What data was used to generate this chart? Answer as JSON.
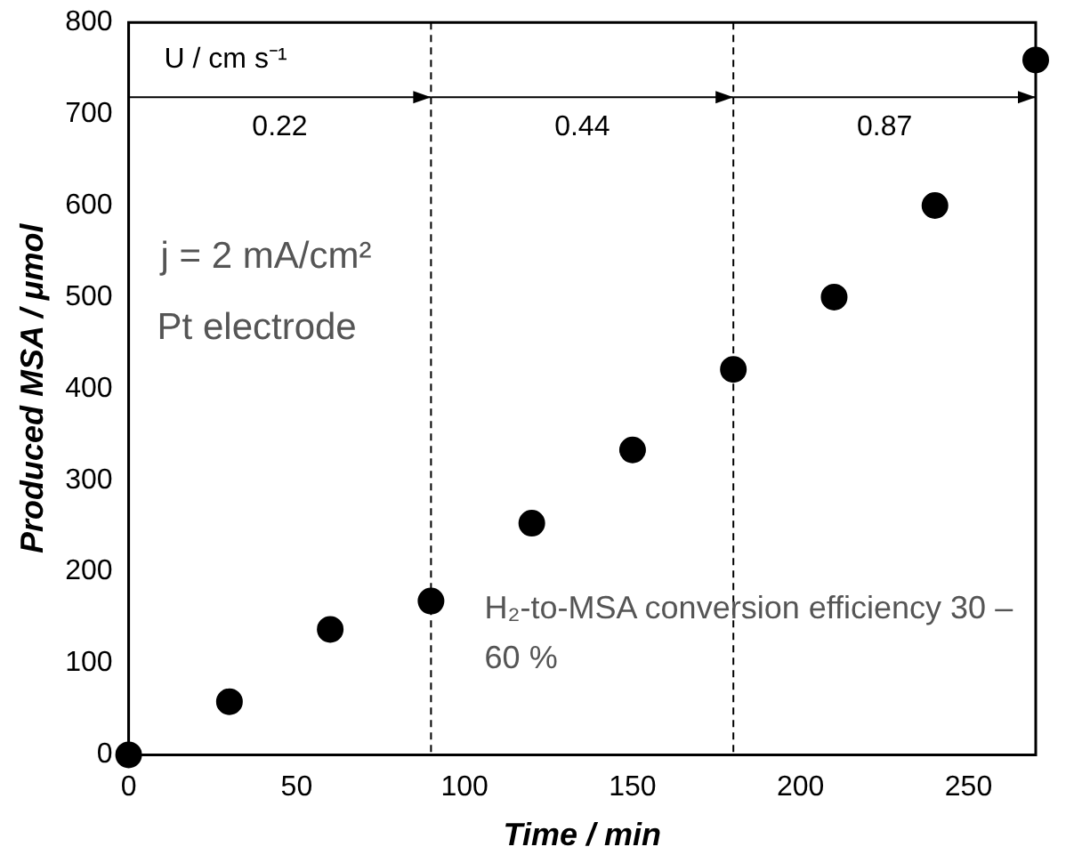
{
  "chart_data": {
    "type": "scatter",
    "xlabel": "Time / min",
    "ylabel": "Produced MSA / μmol",
    "x": [
      0,
      30,
      60,
      90,
      120,
      150,
      180,
      210,
      240,
      270
    ],
    "values": [
      0,
      58,
      137,
      168,
      253,
      333,
      421,
      500,
      600,
      759
    ],
    "color": "#000000",
    "marker": "circle",
    "xlim": [
      0,
      270
    ],
    "xticks": [
      0,
      50,
      100,
      150,
      200,
      250
    ],
    "ylim": [
      0,
      800
    ],
    "yticks": [
      0,
      100,
      200,
      300,
      400,
      500,
      600,
      700,
      800
    ],
    "grid": false,
    "legend": false,
    "ref_lines": [
      {
        "axis": "x",
        "value": 90,
        "color": "#000000",
        "line_style": "dashed"
      },
      {
        "axis": "x",
        "value": 180,
        "color": "#000000",
        "line_style": "dashed"
      }
    ],
    "annotations": [
      "U / cm s⁻¹",
      "j = 2 mA/cm²",
      "Pt electrode",
      "H₂-to-MSA conversion efficiency 30 – 60 %",
      "0.22",
      "0.44",
      "0.87"
    ]
  }
}
